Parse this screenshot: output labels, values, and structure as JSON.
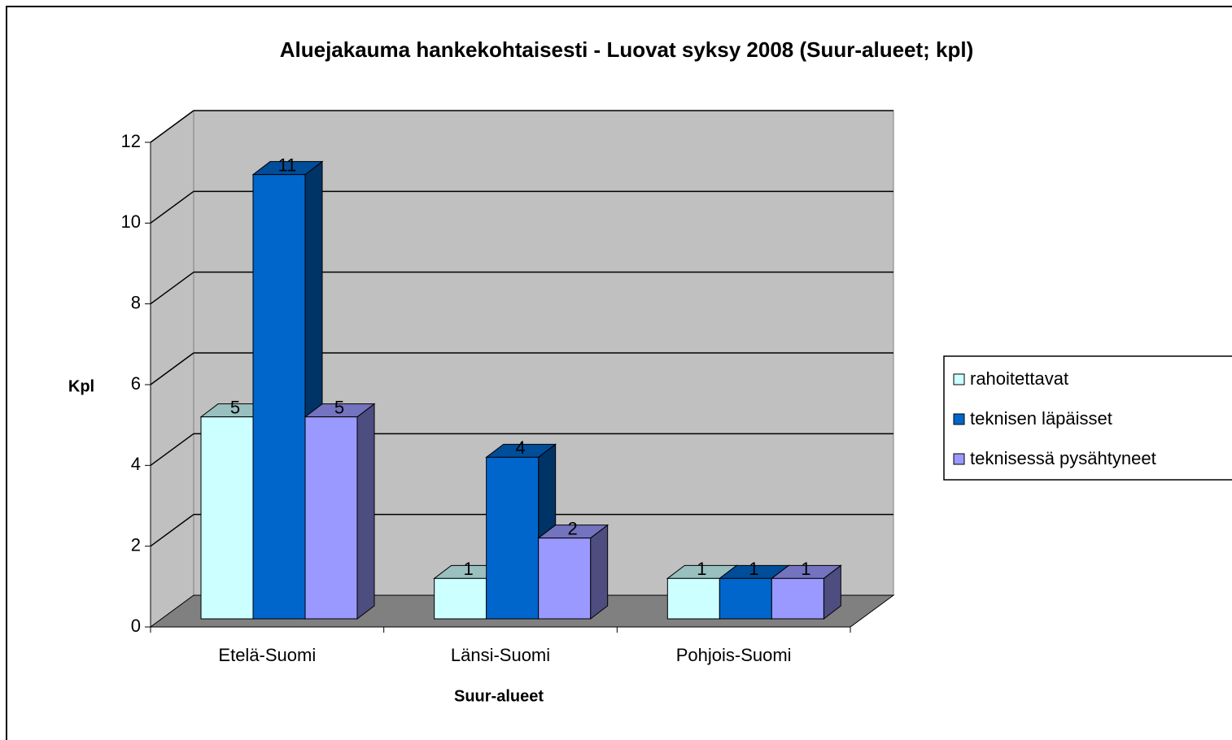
{
  "chart_data": {
    "type": "bar3d",
    "title": "Aluejakauma hankekohtaisesti - Luovat syksy 2008 (Suur-alueet; kpl)",
    "x_label": "Suur-alueet",
    "y_label": "Kpl",
    "categories": [
      "Etelä-Suomi",
      "Länsi-Suomi",
      "Pohjois-Suomi"
    ],
    "series": [
      {
        "name": "rahoitettavat",
        "color": "#ccffff",
        "values": [
          5,
          1,
          1
        ]
      },
      {
        "name": "teknisen läpäisset",
        "color": "#0066cc",
        "values": [
          11,
          4,
          1
        ]
      },
      {
        "name": "teknisessä pysähtyneet",
        "color": "#9999ff",
        "values": [
          5,
          2,
          1
        ]
      }
    ],
    "ylim": [
      0,
      12
    ],
    "yticks": [
      0,
      2,
      4,
      6,
      8,
      10,
      12
    ],
    "grid": true,
    "legend": "right"
  }
}
